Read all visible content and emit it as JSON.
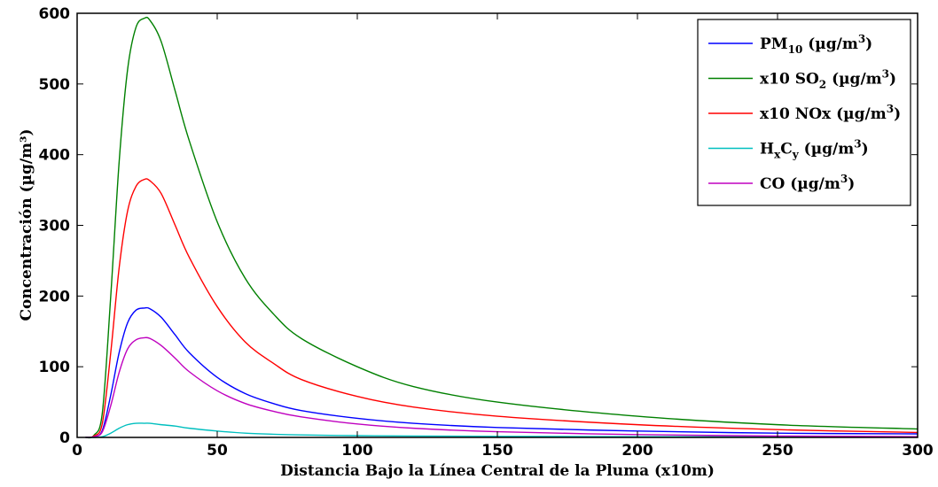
{
  "chart_data": {
    "type": "line",
    "xlabel": "Distancia Bajo la Línea Central de la Pluma (x10m)",
    "ylabel": "Concentración (µg/m³)",
    "xlim": [
      0,
      300
    ],
    "ylim": [
      0,
      600
    ],
    "x_ticks": [
      0,
      50,
      100,
      150,
      200,
      250,
      300
    ],
    "y_ticks": [
      0,
      100,
      200,
      300,
      400,
      500,
      600
    ],
    "grid": false,
    "legend_position": "top-right",
    "series": [
      {
        "name": "PM10 (µg/m3)",
        "color": "#0000ff",
        "x": [
          3,
          6,
          9,
          12,
          15,
          18,
          21,
          24,
          26,
          30,
          35,
          40,
          50,
          60,
          70,
          80,
          100,
          120,
          150,
          200,
          250,
          300
        ],
        "y": [
          0,
          1,
          10,
          60,
          120,
          162,
          180,
          183,
          182,
          170,
          145,
          120,
          85,
          62,
          48,
          38,
          27,
          20,
          14,
          9,
          6,
          5
        ]
      },
      {
        "name": "x10 SO2 (µg/m3)",
        "color": "#008000",
        "x": [
          3,
          6,
          9,
          12,
          15,
          18,
          21,
          24,
          26,
          30,
          35,
          40,
          50,
          60,
          70,
          80,
          100,
          120,
          150,
          200,
          250,
          300
        ],
        "y": [
          0,
          3,
          35,
          200,
          390,
          520,
          580,
          593,
          590,
          560,
          490,
          420,
          305,
          225,
          175,
          140,
          100,
          72,
          50,
          30,
          18,
          12
        ]
      },
      {
        "name": "x10 NOx (µg/m3)",
        "color": "#ff0000",
        "x": [
          3,
          6,
          9,
          12,
          15,
          18,
          21,
          24,
          26,
          30,
          35,
          40,
          50,
          60,
          70,
          80,
          100,
          120,
          150,
          200,
          250,
          300
        ],
        "y": [
          0,
          2,
          20,
          120,
          240,
          320,
          355,
          365,
          363,
          345,
          300,
          255,
          185,
          135,
          105,
          82,
          58,
          43,
          30,
          18,
          11,
          7
        ]
      },
      {
        "name": "HxCy (µg/m3)",
        "color": "#00bfbf",
        "x": [
          3,
          6,
          9,
          12,
          15,
          18,
          21,
          24,
          26,
          30,
          35,
          40,
          50,
          60,
          70,
          80,
          100,
          120,
          150,
          200,
          250,
          300
        ],
        "y": [
          0,
          0,
          1,
          6,
          13,
          18,
          20,
          20,
          20,
          18,
          16,
          13,
          9,
          6,
          4.5,
          3.5,
          2.5,
          2,
          1.5,
          1,
          0.8,
          0.5
        ]
      },
      {
        "name": "CO (µg/m3)",
        "color": "#bf00bf",
        "x": [
          3,
          6,
          9,
          12,
          15,
          18,
          21,
          24,
          26,
          30,
          35,
          40,
          50,
          60,
          70,
          80,
          100,
          120,
          150,
          200,
          250,
          300
        ],
        "y": [
          0,
          1,
          8,
          45,
          92,
          125,
          138,
          141,
          140,
          130,
          112,
          93,
          66,
          48,
          37,
          29,
          19,
          13,
          8,
          4,
          2,
          1
        ]
      }
    ]
  },
  "legend_labels": [
    {
      "pre": "PM",
      "sub": "10",
      "mid": "",
      "sub2": "",
      "post": " (µg/m",
      "sup": "3",
      "end": ")"
    },
    {
      "pre": "x10 SO",
      "sub": "2",
      "mid": "",
      "sub2": "",
      "post": " (µg/m",
      "sup": "3",
      "end": ")"
    },
    {
      "pre": "x10 NOx",
      "sub": "",
      "mid": "",
      "sub2": "",
      "post": " (µg/m",
      "sup": "3",
      "end": ")"
    },
    {
      "pre": "H",
      "sub": "x",
      "mid": "C",
      "sub2": "y",
      "post": " (µg/m",
      "sup": "3",
      "end": ")"
    },
    {
      "pre": "CO",
      "sub": "",
      "mid": "",
      "sub2": "",
      "post": " (µg/m",
      "sup": "3",
      "end": ")"
    }
  ]
}
